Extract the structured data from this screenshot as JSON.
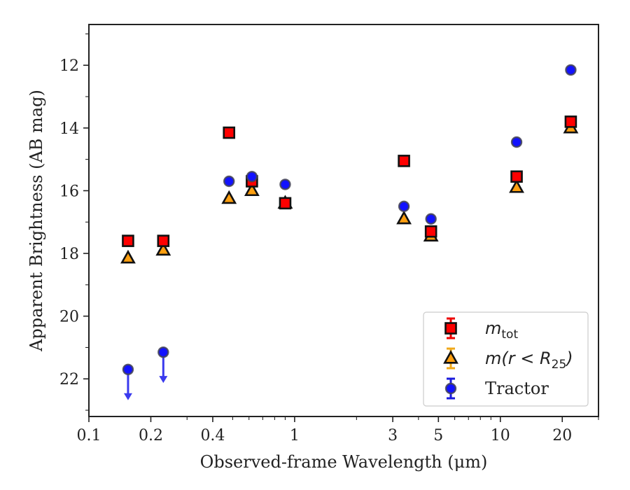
{
  "chart_data": {
    "type": "scatter",
    "xlabel": "Observed-frame Wavelength (μm)",
    "ylabel": "Apparent Brightness (AB mag)",
    "xscale": "log",
    "xlim": [
      0.1,
      30
    ],
    "ylim": [
      23.2,
      10.7
    ],
    "y_inverted": true,
    "grid": false,
    "x_ticks": [
      0.1,
      0.2,
      0.4,
      1,
      3,
      5,
      10,
      20
    ],
    "x_tick_labels": [
      "0.1",
      "0.2",
      "0.4",
      "1",
      "3",
      "5",
      "10",
      "20"
    ],
    "y_ticks": [
      12,
      14,
      16,
      18,
      20,
      22
    ],
    "y_tick_labels": [
      "12",
      "14",
      "16",
      "18",
      "20",
      "22"
    ],
    "legend_position": "lower-right",
    "series": [
      {
        "name": "m_tot",
        "legend_main": "m",
        "legend_sub": "tot",
        "marker": "square",
        "color": "#ff0000",
        "edge": "#111111",
        "points": [
          {
            "x": 0.155,
            "y": 17.6
          },
          {
            "x": 0.23,
            "y": 17.6
          },
          {
            "x": 0.48,
            "y": 14.15
          },
          {
            "x": 0.62,
            "y": 15.7
          },
          {
            "x": 0.9,
            "y": 16.4
          },
          {
            "x": 3.4,
            "y": 15.05
          },
          {
            "x": 4.6,
            "y": 17.3
          },
          {
            "x": 12.0,
            "y": 15.55
          },
          {
            "x": 22.0,
            "y": 13.8
          }
        ]
      },
      {
        "name": "m(r < R_25)",
        "legend_main": "m(r < R",
        "legend_sub": "25",
        "legend_close": ")",
        "marker": "triangle",
        "color": "#ff9f0f",
        "edge": "#111111",
        "points": [
          {
            "x": 0.155,
            "y": 18.15
          },
          {
            "x": 0.23,
            "y": 17.9
          },
          {
            "x": 0.48,
            "y": 16.25
          },
          {
            "x": 0.62,
            "y": 16.0
          },
          {
            "x": 0.9,
            "y": 16.4
          },
          {
            "x": 3.4,
            "y": 16.9
          },
          {
            "x": 4.6,
            "y": 17.45
          },
          {
            "x": 12.0,
            "y": 15.9
          },
          {
            "x": 22.0,
            "y": 14.0
          }
        ]
      },
      {
        "name": "Tractor",
        "marker": "circle",
        "color": "#1212ff",
        "edge": "#444455",
        "upper_limit_color": "#3a3aee",
        "points": [
          {
            "x": 0.155,
            "y": 21.7,
            "upper_limit": true
          },
          {
            "x": 0.23,
            "y": 21.15,
            "upper_limit": true
          },
          {
            "x": 0.48,
            "y": 15.7
          },
          {
            "x": 0.62,
            "y": 15.55
          },
          {
            "x": 0.9,
            "y": 15.8
          },
          {
            "x": 3.4,
            "y": 16.5
          },
          {
            "x": 4.6,
            "y": 16.9
          },
          {
            "x": 12.0,
            "y": 14.45
          },
          {
            "x": 22.0,
            "y": 12.15
          }
        ]
      }
    ]
  }
}
